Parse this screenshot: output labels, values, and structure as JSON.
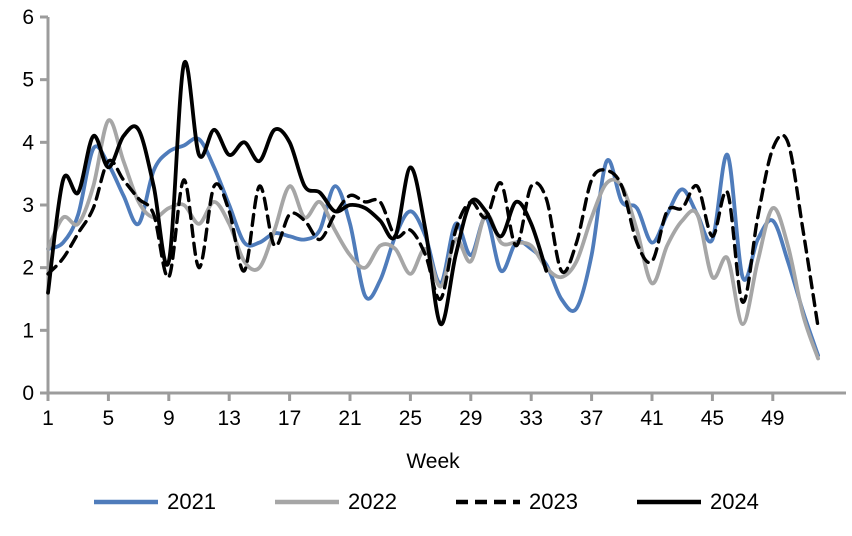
{
  "chart_data": {
    "type": "line",
    "title": "",
    "xlabel": "Week",
    "ylabel": "",
    "xlim": [
      1,
      53.8
    ],
    "ylim": [
      0,
      6
    ],
    "x_ticks": [
      1,
      5,
      9,
      13,
      17,
      21,
      25,
      29,
      33,
      37,
      41,
      45,
      49
    ],
    "y_ticks": [
      0,
      1,
      2,
      3,
      4,
      5,
      6
    ],
    "grid": false,
    "legend_position": "bottom",
    "axis_color": "#9c9c9c",
    "text_color": "#000000",
    "smoothing": "spline",
    "x_start_week": 1,
    "series": [
      {
        "name": "2021",
        "color": "#4f7cbb",
        "style": "solid",
        "values": [
          2.3,
          2.4,
          2.85,
          3.9,
          3.65,
          3.15,
          2.7,
          3.55,
          3.85,
          3.95,
          4.05,
          3.6,
          3.0,
          2.4,
          2.4,
          2.55,
          2.5,
          2.45,
          2.6,
          3.3,
          2.7,
          1.55,
          1.8,
          2.5,
          2.9,
          2.5,
          1.75,
          2.7,
          2.2,
          2.8,
          1.95,
          2.4,
          2.3,
          2.05,
          1.5,
          1.35,
          2.2,
          3.7,
          3.05,
          2.95,
          2.4,
          2.85,
          3.25,
          2.85,
          2.45,
          3.8,
          1.85,
          2.45,
          2.75,
          2.1,
          1.3,
          0.6
        ]
      },
      {
        "name": "2022",
        "color": "#a6a6a6",
        "style": "solid",
        "values": [
          2.3,
          2.8,
          2.7,
          3.3,
          4.35,
          3.7,
          3.05,
          2.8,
          2.95,
          3.0,
          2.7,
          3.05,
          2.7,
          2.1,
          2.0,
          2.6,
          3.3,
          2.8,
          3.05,
          2.6,
          2.2,
          2.0,
          2.35,
          2.3,
          1.9,
          2.3,
          1.7,
          2.45,
          2.1,
          2.85,
          2.4,
          2.4,
          2.35,
          2.0,
          1.85,
          2.1,
          2.8,
          3.35,
          3.3,
          2.6,
          1.75,
          2.35,
          2.75,
          2.85,
          1.85,
          2.15,
          1.1,
          2.1,
          2.95,
          2.35,
          1.25,
          0.55
        ]
      },
      {
        "name": "2023",
        "color": "#000000",
        "style": "dashed",
        "values": [
          1.9,
          2.15,
          2.55,
          2.95,
          3.7,
          3.4,
          3.1,
          2.85,
          1.85,
          3.4,
          2.0,
          3.3,
          2.9,
          1.95,
          3.3,
          2.35,
          2.85,
          2.75,
          2.45,
          2.85,
          3.15,
          3.05,
          3.05,
          2.5,
          2.6,
          2.2,
          1.5,
          2.6,
          3.05,
          2.8,
          3.35,
          2.35,
          3.3,
          3.1,
          1.95,
          2.4,
          3.4,
          3.55,
          3.3,
          2.4,
          2.1,
          2.9,
          2.95,
          3.3,
          2.5,
          3.2,
          1.45,
          2.8,
          3.9,
          4.0,
          2.6,
          1.05
        ]
      },
      {
        "name": "2024",
        "color": "#000000",
        "style": "solid",
        "values": [
          1.6,
          3.4,
          3.2,
          4.1,
          3.6,
          4.1,
          4.2,
          3.3,
          2.1,
          5.25,
          3.8,
          4.2,
          3.8,
          4.0,
          3.7,
          4.2,
          4.0,
          3.3,
          3.2,
          2.9,
          3.0,
          2.95,
          2.75,
          2.5,
          3.6,
          2.6,
          1.1,
          2.2,
          3.05,
          2.9,
          2.5,
          3.05,
          2.7,
          1.95
        ]
      }
    ]
  }
}
